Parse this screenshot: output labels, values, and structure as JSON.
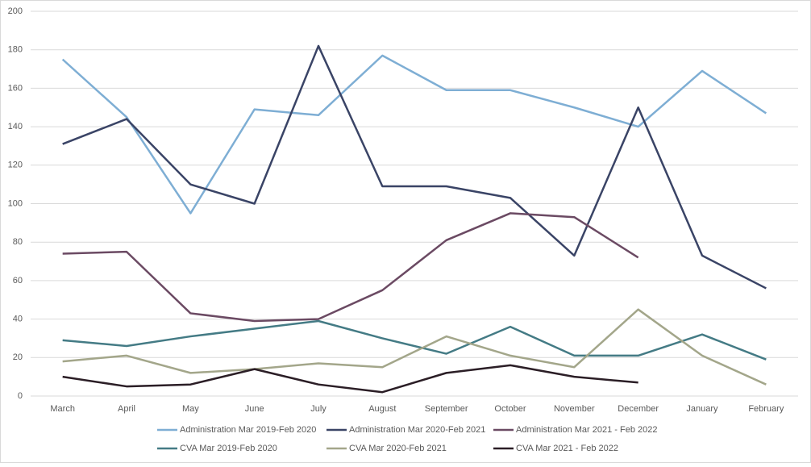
{
  "chart_data": {
    "type": "line",
    "categories": [
      "March",
      "April",
      "May",
      "June",
      "July",
      "August",
      "September",
      "October",
      "November",
      "December",
      "January",
      "February"
    ],
    "series": [
      {
        "name": "Administration Mar 2019-Feb 2020",
        "color": "#7eaed4",
        "values": [
          175,
          145,
          95,
          149,
          146,
          177,
          159,
          159,
          150,
          140,
          169,
          147
        ]
      },
      {
        "name": "Administration Mar 2020-Feb 2021",
        "color": "#3a4466",
        "values": [
          131,
          144,
          110,
          100,
          182,
          109,
          109,
          103,
          73,
          150,
          73,
          56
        ]
      },
      {
        "name": "Administration Mar 2021 - Feb 2022",
        "color": "#6b4a63",
        "values": [
          74,
          75,
          43,
          39,
          40,
          55,
          81,
          95,
          93,
          72,
          null,
          null
        ]
      },
      {
        "name": "CVA Mar 2019-Feb 2020",
        "color": "#447b85",
        "values": [
          29,
          26,
          31,
          35,
          39,
          30,
          22,
          36,
          21,
          21,
          32,
          19
        ]
      },
      {
        "name": "CVA Mar 2020-Feb 2021",
        "color": "#a3a68a",
        "values": [
          18,
          21,
          12,
          14,
          17,
          15,
          31,
          21,
          15,
          45,
          21,
          6
        ]
      },
      {
        "name": "CVA Mar 2021 - Feb 2022",
        "color": "#2b1e26",
        "values": [
          10,
          5,
          6,
          14,
          6,
          2,
          12,
          16,
          10,
          7,
          null,
          null
        ]
      }
    ],
    "ylim": [
      0,
      200
    ],
    "yticks": [
      0,
      20,
      40,
      60,
      80,
      100,
      120,
      140,
      160,
      180,
      200
    ],
    "grid": true,
    "legend": "bottom"
  }
}
